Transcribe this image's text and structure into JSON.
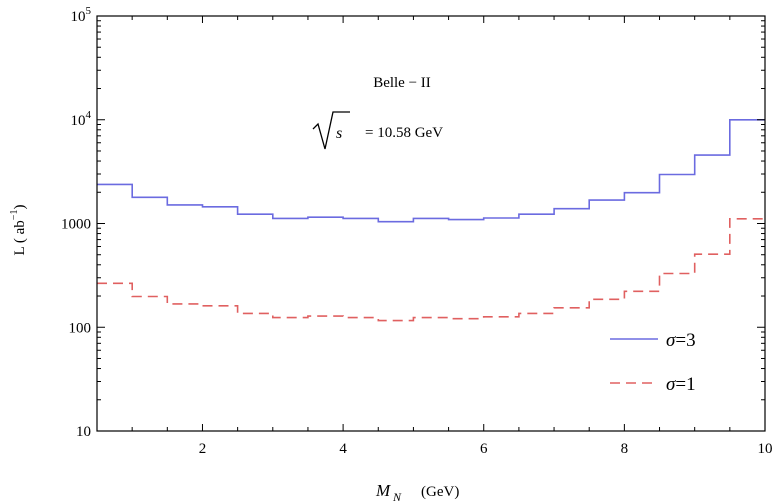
{
  "chart_data": {
    "type": "line",
    "xlabel_main": "M",
    "xlabel_sub": "N",
    "xlabel_unit": "(GeV)",
    "ylabel": "L ( ab",
    "ylabel_sup": "−1",
    "ylabel_close": ")",
    "xlim": [
      0.5,
      10
    ],
    "ylim": [
      10,
      100000
    ],
    "yscale": "log",
    "x_ticks": [
      2,
      4,
      6,
      8,
      10
    ],
    "x_tick_labels": [
      "2",
      "4",
      "6",
      "8",
      "10"
    ],
    "y_ticks": [
      10,
      100,
      1000
    ],
    "y_tick_labels": [
      "10",
      "100",
      "1000"
    ],
    "y_power_ticks": [
      {
        "value": 10000,
        "base": "10",
        "exp": "4"
      },
      {
        "value": 100000,
        "base": "10",
        "exp": "5"
      }
    ],
    "annotation_experiment": "Belle − II",
    "annotation_sqrt": "s",
    "annotation_energy": "= 10.58  GeV",
    "legend_position": "bottom-right",
    "series": [
      {
        "name": "σ=3",
        "legend_symbol": "σ",
        "legend_value": "=3",
        "color": "#6b6be0",
        "style": "solid",
        "bin_edges": [
          0.5,
          1.0,
          1.5,
          2.0,
          2.5,
          3.0,
          3.5,
          4.0,
          4.5,
          5.0,
          5.5,
          6.0,
          6.5,
          7.0,
          7.5,
          8.0,
          8.5,
          9.0,
          9.5,
          10.0
        ],
        "values": [
          2380,
          1790,
          1510,
          1450,
          1230,
          1120,
          1150,
          1120,
          1040,
          1120,
          1090,
          1130,
          1230,
          1390,
          1680,
          1980,
          2970,
          4560,
          10000
        ]
      },
      {
        "name": "σ=1",
        "legend_symbol": "σ",
        "legend_value": "=1",
        "color": "#e06060",
        "style": "dashed",
        "bin_edges": [
          0.5,
          1.0,
          1.5,
          2.0,
          2.5,
          3.0,
          3.5,
          4.0,
          4.5,
          5.0,
          5.5,
          6.0,
          6.5,
          7.0,
          7.5,
          8.0,
          8.5,
          9.0,
          9.5,
          10.0
        ],
        "values": [
          265,
          198,
          168,
          161,
          136,
          124,
          128,
          124,
          116,
          124,
          121,
          126,
          136,
          154,
          186,
          222,
          330,
          506,
          1110
        ]
      }
    ]
  }
}
